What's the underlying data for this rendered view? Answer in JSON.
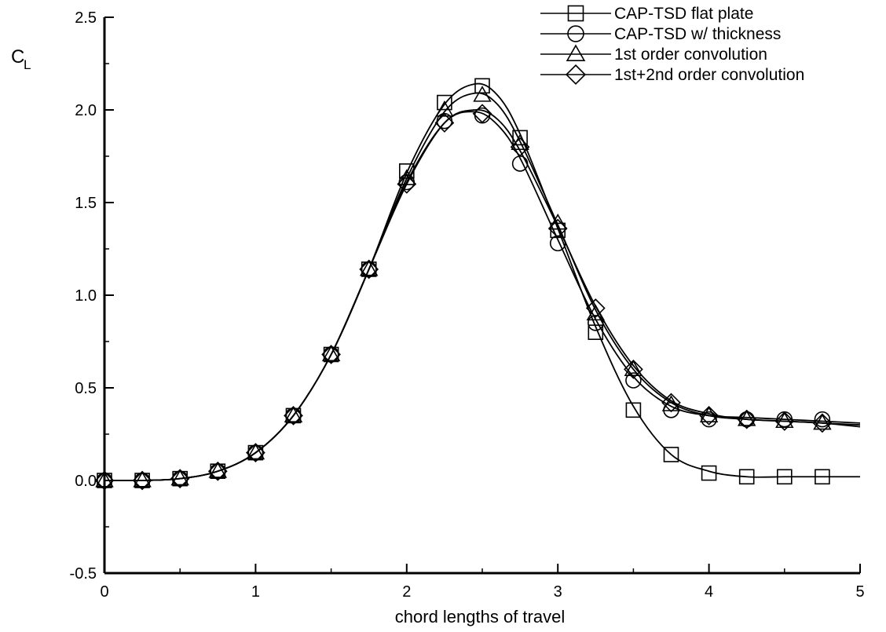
{
  "chart_data": {
    "type": "line",
    "title": "",
    "xlabel": "chord lengths of travel",
    "ylabel": "C",
    "ylabel_sub": "L",
    "xlim": [
      0,
      5
    ],
    "ylim": [
      -0.5,
      2.5
    ],
    "x_ticks": [
      "0",
      "1",
      "2",
      "3",
      "4",
      "5"
    ],
    "y_ticks": [
      "-0.5",
      "0.0",
      "0.5",
      "1.0",
      "1.5",
      "2.0",
      "2.5"
    ],
    "grid": false,
    "legend_position": "top-right",
    "series": [
      {
        "name": "CAP-TSD flat plate",
        "marker": "square",
        "x": [
          0,
          0.25,
          0.5,
          0.75,
          1.0,
          1.25,
          1.5,
          1.75,
          2.0,
          2.25,
          2.5,
          2.75,
          3.0,
          3.25,
          3.5,
          3.75,
          4.0,
          4.25,
          4.5,
          4.75
        ],
        "y": [
          0.0,
          0.0,
          0.01,
          0.05,
          0.15,
          0.35,
          0.68,
          1.14,
          1.67,
          2.04,
          2.13,
          1.85,
          1.35,
          0.8,
          0.38,
          0.14,
          0.04,
          0.02,
          0.02,
          0.02
        ],
        "curve_x": [
          0,
          0.25,
          0.5,
          0.75,
          1.0,
          1.25,
          1.5,
          1.75,
          2.0,
          2.25,
          2.45,
          2.6,
          2.75,
          3.0,
          3.25,
          3.5,
          3.75,
          4.0,
          4.25,
          4.5,
          4.75,
          5.0
        ],
        "curve_y": [
          0.0,
          0.0,
          0.01,
          0.05,
          0.15,
          0.35,
          0.68,
          1.14,
          1.66,
          2.03,
          2.14,
          2.08,
          1.87,
          1.36,
          0.83,
          0.4,
          0.14,
          0.05,
          0.02,
          0.02,
          0.02,
          0.02
        ]
      },
      {
        "name": "CAP-TSD w/ thickness",
        "marker": "circle",
        "x": [
          0,
          0.25,
          0.5,
          0.75,
          1.0,
          1.25,
          1.5,
          1.75,
          2.0,
          2.25,
          2.5,
          2.75,
          3.0,
          3.25,
          3.5,
          3.75,
          4.0,
          4.25,
          4.5,
          4.75
        ],
        "y": [
          0.0,
          0.0,
          0.01,
          0.05,
          0.15,
          0.35,
          0.68,
          1.14,
          1.61,
          1.94,
          1.97,
          1.71,
          1.28,
          0.85,
          0.54,
          0.38,
          0.33,
          0.33,
          0.33,
          0.33
        ],
        "curve_x": [
          0,
          0.25,
          0.5,
          0.75,
          1.0,
          1.25,
          1.5,
          1.75,
          2.0,
          2.25,
          2.45,
          2.6,
          2.75,
          3.0,
          3.25,
          3.5,
          3.75,
          4.0,
          4.25,
          4.5,
          4.75,
          5.0
        ],
        "curve_y": [
          0.0,
          0.0,
          0.01,
          0.05,
          0.15,
          0.35,
          0.68,
          1.14,
          1.61,
          1.93,
          1.99,
          1.92,
          1.74,
          1.3,
          0.87,
          0.56,
          0.4,
          0.35,
          0.34,
          0.33,
          0.32,
          0.31
        ]
      },
      {
        "name": "1st order convolution",
        "marker": "triangle",
        "x": [
          0,
          0.25,
          0.5,
          0.75,
          1.0,
          1.25,
          1.5,
          1.75,
          2.0,
          2.25,
          2.5,
          2.75,
          3.0,
          3.25,
          3.5,
          3.75,
          4.0,
          4.25,
          4.5,
          4.75
        ],
        "y": [
          0.0,
          0.0,
          0.01,
          0.05,
          0.15,
          0.35,
          0.68,
          1.14,
          1.63,
          2.0,
          2.08,
          1.82,
          1.39,
          0.9,
          0.6,
          0.41,
          0.35,
          0.33,
          0.32,
          0.31
        ],
        "curve_x": [
          0,
          0.25,
          0.5,
          0.75,
          1.0,
          1.25,
          1.5,
          1.75,
          2.0,
          2.25,
          2.45,
          2.6,
          2.75,
          3.0,
          3.25,
          3.5,
          3.75,
          4.0,
          4.25,
          4.5,
          4.75,
          5.0
        ],
        "curve_y": [
          0.0,
          0.0,
          0.01,
          0.05,
          0.15,
          0.35,
          0.68,
          1.14,
          1.63,
          1.99,
          2.09,
          2.03,
          1.83,
          1.38,
          0.92,
          0.6,
          0.42,
          0.35,
          0.33,
          0.32,
          0.31,
          0.3
        ]
      },
      {
        "name": "1st+2nd order convolution",
        "marker": "diamond",
        "x": [
          0,
          0.25,
          0.5,
          0.75,
          1.0,
          1.25,
          1.5,
          1.75,
          2.0,
          2.25,
          2.5,
          2.75,
          3.0,
          3.25,
          3.5,
          3.75,
          4.0,
          4.25,
          4.5,
          4.75
        ],
        "y": [
          0.0,
          0.0,
          0.01,
          0.05,
          0.15,
          0.35,
          0.68,
          1.14,
          1.6,
          1.93,
          1.98,
          1.8,
          1.36,
          0.93,
          0.6,
          0.42,
          0.35,
          0.33,
          0.32,
          0.31
        ],
        "curve_x": [
          0,
          0.25,
          0.5,
          0.75,
          1.0,
          1.25,
          1.5,
          1.75,
          2.0,
          2.25,
          2.45,
          2.6,
          2.75,
          3.0,
          3.25,
          3.5,
          3.75,
          4.0,
          4.25,
          4.5,
          4.75,
          5.0
        ],
        "curve_y": [
          0.0,
          0.0,
          0.01,
          0.05,
          0.15,
          0.35,
          0.68,
          1.14,
          1.6,
          1.93,
          2.0,
          1.95,
          1.78,
          1.37,
          0.94,
          0.62,
          0.43,
          0.36,
          0.33,
          0.32,
          0.31,
          0.29
        ]
      }
    ]
  }
}
